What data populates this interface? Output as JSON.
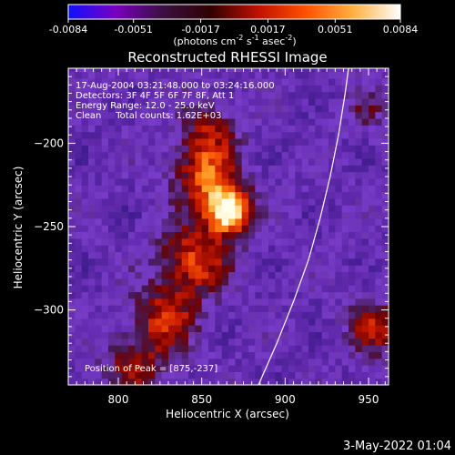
{
  "colorbar": {
    "ticks": [
      "-0.0084",
      "-0.0051",
      "-0.0017",
      "0.0017",
      "0.0051",
      "0.0084"
    ],
    "min": -0.0084,
    "max": 0.0084,
    "unit_label": "(photons cm",
    "unit_exp1": "-2",
    "unit_mid": " s",
    "unit_exp2": "-1",
    "unit_mid2": " asec",
    "unit_exp3": "-2",
    "unit_close": ")",
    "colors": [
      "#1010ff",
      "#7a00c0",
      "#3a1040",
      "#300000",
      "#c01000",
      "#ff5000",
      "#ffb040",
      "#ffffff"
    ]
  },
  "chart_data": {
    "type": "heatmap",
    "title": "Reconstructed RHESSI Image",
    "xlabel": "Heliocentric X (arcsec)",
    "ylabel": "Heliocentric Y (arcsec)",
    "xlim": [
      770,
      962
    ],
    "ylim": [
      -345,
      -155
    ],
    "x_ticks": [
      800,
      850,
      900,
      950
    ],
    "y_ticks": [
      -300,
      -250,
      -200
    ],
    "annotation_lines": [
      "17-Aug-2004 03:21:48.000 to 03:24:16.000",
      "Detectors: 3F 4F 5F 6F 7F 8F, Att 1",
      "Energy Range: 12.0 - 25.0 keV",
      "Clean     Total counts: 1.62E+03"
    ],
    "peak_label": "Position of Peak = [875,-237]",
    "peak_position": [
      875,
      -237
    ],
    "limb": [
      [
        884,
        -345
      ],
      [
        895,
        -320
      ],
      [
        905,
        -295
      ],
      [
        914,
        -270
      ],
      [
        921,
        -245
      ],
      [
        927,
        -220
      ],
      [
        932,
        -195
      ],
      [
        936,
        -170
      ],
      [
        938,
        -155
      ]
    ],
    "sources": [
      {
        "x": 866,
        "y": -240,
        "amp": 1.0,
        "sigma": 10
      },
      {
        "x": 852,
        "y": -218,
        "amp": 0.6,
        "sigma": 13
      },
      {
        "x": 845,
        "y": -270,
        "amp": 0.55,
        "sigma": 15
      },
      {
        "x": 828,
        "y": -305,
        "amp": 0.45,
        "sigma": 14
      },
      {
        "x": 810,
        "y": -335,
        "amp": 0.35,
        "sigma": 14
      },
      {
        "x": 855,
        "y": -190,
        "amp": 0.35,
        "sigma": 12
      },
      {
        "x": 955,
        "y": -310,
        "amp": 0.45,
        "sigma": 12
      },
      {
        "x": 950,
        "y": -180,
        "amp": 0.2,
        "sigma": 10
      }
    ]
  },
  "footer": {
    "date": "3-May-2022 01:04"
  }
}
